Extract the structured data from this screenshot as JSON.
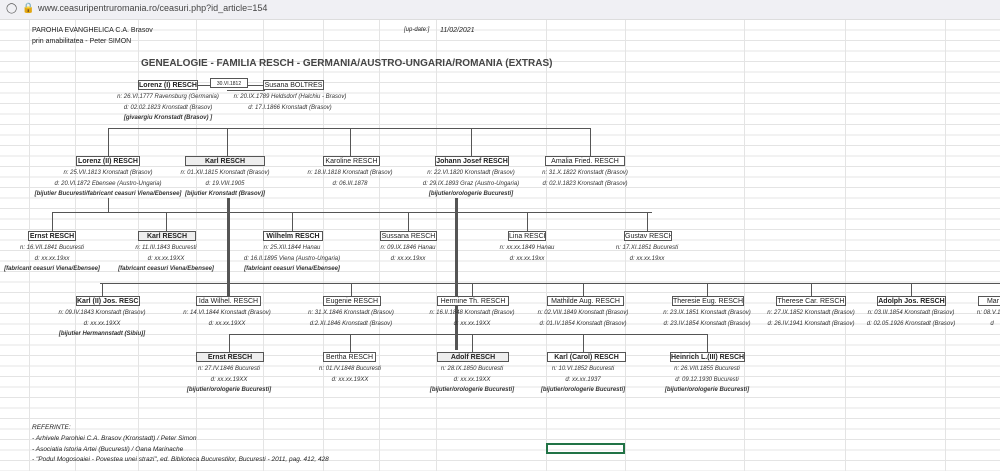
{
  "browser": {
    "url": "www.ceasuripentruromania.ro/ceasuri.php?id_article=154",
    "icons": [
      "shield-icon",
      "page-lock-icon"
    ]
  },
  "header": {
    "org": "PAROHIA EVANGHELICA C.A. Brasov",
    "courtesy": "prin amabilitatea - Peter SIMON",
    "update_label": "[up-date:]",
    "update_date": "11/02/2021",
    "title": "GENEALOGIE - FAMILIA RESCH - GERMANIA/AUSTRO-UNGARIA/ROMANIA (EXTRAS)"
  },
  "marriage_date": "30.VI.1812",
  "people": [
    {
      "name": "Lorenz (I) RESCH",
      "lines": [
        "n: 26.VI.1777 Ravensburg (Germania)",
        "d: 02.02.1823 Kronstadt (Brasov)"
      ],
      "occ": "[givaergiu Kronstadt (Brasov) ]"
    },
    {
      "name": "Susana BOLTRES",
      "lines": [
        "n: 20.IX.1789 Heldsdorf (Halchiu - Brasov)",
        "d: 17.I.1866 Kronstadt (Brasov)"
      ],
      "occ": ""
    },
    {
      "name": "Lorenz (II) RESCH",
      "lines": [
        "n: 25.VII.1813 Kronstadt (Brasov)",
        "d: 20.VI.1872 Ebensee (Austro-Ungaria)"
      ],
      "occ": "[bijutier Bucuresti/fabricant ceasuri Viena/Ebensee]"
    },
    {
      "name": "Karl RESCH",
      "lines": [
        "n: 01.XII.1815 Kronstadt (Brasov)",
        "d: 19.VIII.1905"
      ],
      "occ": "[bijutier Kronstadt (Brasov)]"
    },
    {
      "name": "Karoline RESCH",
      "lines": [
        "n: 18.II.1818 Kronstadt (Brasov)",
        "d: 06.III.1878"
      ],
      "occ": ""
    },
    {
      "name": "Johann Josef RESCH",
      "lines": [
        "n: 22.VI.1820 Kronstadt (Brasov)",
        "d: 29.IX.1893 Graz (Austro-Ungaria)"
      ],
      "occ": "[bijutier/orologerie Bucuresti]"
    },
    {
      "name": "Amalia Fried. RESCH",
      "lines": [
        "n: 31.X.1822 Kronstadt (Brasov)",
        "d: 02.II.1823 Kronstadt (Brasov)"
      ],
      "occ": ""
    },
    {
      "name": "Ernst RESCH",
      "lines": [
        "n: 16.VII.1841 Bucuresti",
        "d: xx.xx.19xx"
      ],
      "occ": "[fabricant ceasuri Viena/Ebensee]"
    },
    {
      "name": "Karl RESCH",
      "lines": [
        "n: 11.III.1843 Bucuresti",
        "d: xx.xx.19XX"
      ],
      "occ": "[fabricant ceasuri Viena/Ebensee]"
    },
    {
      "name": "Wilhelm RESCH",
      "lines": [
        "n: 25.XII.1844 Hanau",
        "d: 16.II.1895 Viena (Austro-Ungaria)"
      ],
      "occ": "[fabricant ceasuri Viena/Ebensee]"
    },
    {
      "name": "Sussana RESCH",
      "lines": [
        "n: 09.IX.1846 Hanau",
        "d: xx.xx.19xx"
      ],
      "occ": ""
    },
    {
      "name": "Lina RESCH",
      "lines": [
        "n: xx.xx.1849 Hanau",
        "d: xx.xx.19xx"
      ],
      "occ": ""
    },
    {
      "name": "Gustav RESCH",
      "lines": [
        "n: 17.XI.1851 Bucuresti",
        "d: xx.xx.19xx"
      ],
      "occ": ""
    },
    {
      "name": "Karl (II) Jos. RESCH",
      "lines": [
        "n: 09.IV.1843 Kronstadt (Brasov)",
        "d: xx.xx.19XX"
      ],
      "occ": "[bijutier Hermannstadt (Sibiu)]"
    },
    {
      "name": "Ida Wilhel. RESCH",
      "lines": [
        "n: 14.VI.1844 Kronstadt (Brasov)",
        "d: xx.xx.19XX"
      ],
      "occ": ""
    },
    {
      "name": "Eugenie RESCH",
      "lines": [
        "n: 31.X.1846 Kronstadt (Brasov)",
        "d:2.XI.1846 Kronstadt (Brasov)"
      ],
      "occ": ""
    },
    {
      "name": "Hermine Th. RESCH",
      "lines": [
        "n: 16.II.1848 Kronstadt (Brasov)",
        "d: xx.xx.19XX"
      ],
      "occ": ""
    },
    {
      "name": "Mathilde Aug. RESCH",
      "lines": [
        "n: 02.VIII.1849 Kronstadt (Brasov)",
        "d: 01.IV.1854 Kronstadt (Brasov)"
      ],
      "occ": ""
    },
    {
      "name": "Theresie Eug. RESCH",
      "lines": [
        "n: 23.IX.1851 Kronstadt (Brasov)",
        "d: 23.IV.1854 Kronstadt (Brasov)"
      ],
      "occ": ""
    },
    {
      "name": "Therese Car. RESCH",
      "lines": [
        "n: 27.IX.1852 Kronstadt (Brasov)",
        "d: 26.IV.1941 Kronstadt (Brasov)"
      ],
      "occ": ""
    },
    {
      "name": "Adolph Jos. RESCH",
      "lines": [
        "n: 03.III.1854 Kronstadt (Brasov)",
        "d: 02.05.1926 Kronstadt (Brasov)"
      ],
      "occ": ""
    },
    {
      "name": "Mar",
      "lines": [
        "n: 08.V.185",
        "d"
      ],
      "occ": ""
    },
    {
      "name": "Ernst RESCH",
      "lines": [
        "n: 27.IV.1846 Bucuresti",
        "d: xx.xx.19XX"
      ],
      "occ": "[bijutier/orologerie Bucuresti]"
    },
    {
      "name": "Bertha RESCH",
      "lines": [
        "n: 01.IV.1848 Bucuresti",
        "d: xx.xx.19XX"
      ],
      "occ": ""
    },
    {
      "name": "Adolf RESCH",
      "lines": [
        "n: 28.IX.1850 Bucuresti",
        "d: xx.xx.19XX"
      ],
      "occ": "[bijutier/orologerie Bucuresti]"
    },
    {
      "name": "Karl (Carol) RESCH",
      "lines": [
        "n: 10.VI.1852 Bucuresti",
        "d: xx.xx.1937"
      ],
      "occ": "[bijutier/orologerie Bucuresti]"
    },
    {
      "name": "Heinrich L.(III) RESCH",
      "lines": [
        "n: 26.VIII.1855 Bucuresti",
        "d: 09.12.1930 Bucuresti"
      ],
      "occ": "[bijutier/orologerie Bucuresti]"
    }
  ],
  "references": {
    "heading": "REFERINTE:",
    "items": [
      "- Arhivele Parohiei C.A. Brasov (Kronstadt) / Peter Simon",
      "- Asociatia Istoria Artei (Bucuresti) / Oana Marinache",
      "- \"Podul Mogosoaiei - Povestea unei strazi\", ed. Biblioteca Bucurestilor, Bucuresti - 2011, pag. 412, 428"
    ]
  },
  "selection_color": "#217346"
}
